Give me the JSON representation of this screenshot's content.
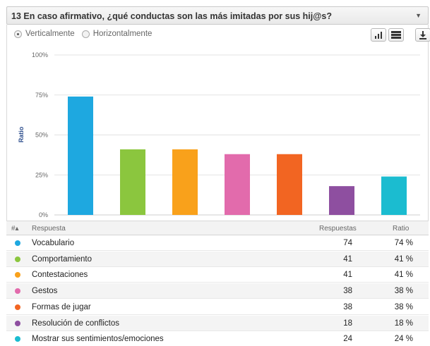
{
  "header": {
    "title": "13 En caso afirmativo, ¿qué conductas son las más imitadas por sus hij@s?",
    "caret_icon": "caret-down-icon"
  },
  "view_options": {
    "vertical_label": "Verticalmente",
    "horizontal_label": "Horizontalmente",
    "selected": "vertical"
  },
  "toolbar": {
    "bar_chart_icon": "bar-chart-icon",
    "table_icon": "table-icon",
    "download_icon": "download-icon"
  },
  "chart_data": {
    "type": "bar",
    "ylabel": "Ratio",
    "ylim": [
      0,
      100
    ],
    "yticks": [
      "0%",
      "25%",
      "50%",
      "75%",
      "100%"
    ],
    "grid": true,
    "categories": [
      "Vocabulario",
      "Comportamiento",
      "Contestaciones",
      "Gestos",
      "Formas de jugar",
      "Resolución de conflictos",
      "Mostrar sus sentimientos/emociones"
    ],
    "values": [
      74,
      41,
      41,
      38,
      38,
      18,
      24
    ],
    "colors": [
      "#1ea8e0",
      "#8bc63e",
      "#f9a11b",
      "#e26bac",
      "#f26522",
      "#8e4fa0",
      "#1bbcd0"
    ]
  },
  "table": {
    "col_index": "#▴",
    "col_answer": "Respuesta",
    "col_count": "Respuestas",
    "col_ratio": "Ratio",
    "rows": [
      {
        "label": "Vocabulario",
        "count": "74",
        "ratio": "74 %",
        "color": "#1ea8e0"
      },
      {
        "label": "Comportamiento",
        "count": "41",
        "ratio": "41 %",
        "color": "#8bc63e"
      },
      {
        "label": "Contestaciones",
        "count": "41",
        "ratio": "41 %",
        "color": "#f9a11b"
      },
      {
        "label": "Gestos",
        "count": "38",
        "ratio": "38 %",
        "color": "#e26bac"
      },
      {
        "label": "Formas de jugar",
        "count": "38",
        "ratio": "38 %",
        "color": "#f26522"
      },
      {
        "label": "Resolución de conflictos",
        "count": "18",
        "ratio": "18 %",
        "color": "#8e4fa0"
      },
      {
        "label": "Mostrar sus sentimientos/emociones",
        "count": "24",
        "ratio": "24 %",
        "color": "#1bbcd0"
      }
    ]
  }
}
